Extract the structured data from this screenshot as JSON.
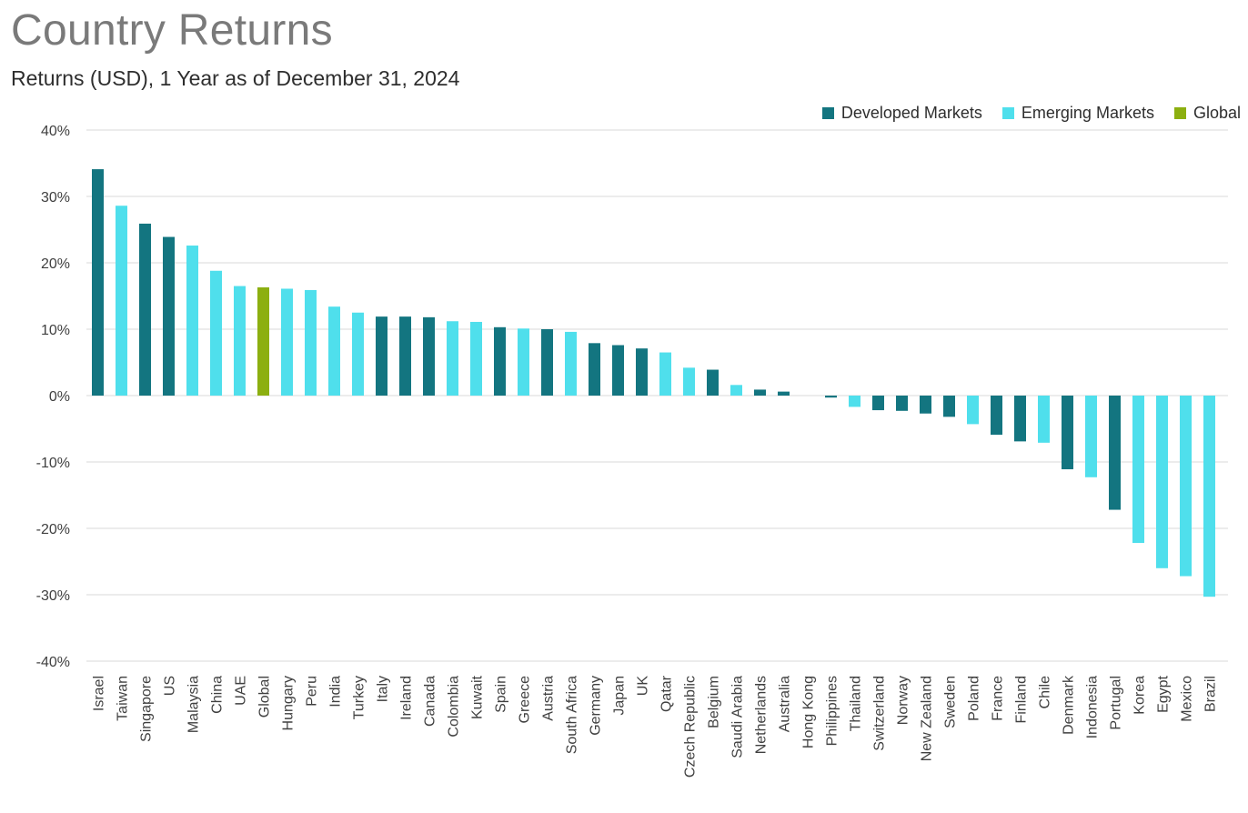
{
  "colors": {
    "developed": "#137580",
    "emerging": "#4fdfec",
    "global": "#8caf10",
    "grid": "#d9d9d9",
    "axis_text": "#404040"
  },
  "chart_data": {
    "type": "bar",
    "title": "Country Returns",
    "subtitle": "Returns (USD), 1 Year as of December 31, 2024",
    "ylim": [
      -40,
      40
    ],
    "yticks": [
      40,
      30,
      20,
      10,
      0,
      -10,
      -20,
      -30,
      -40
    ],
    "ytick_labels": [
      "40%",
      "30%",
      "20%",
      "10%",
      "0%",
      "-10%",
      "-20%",
      "-30%",
      "-40%"
    ],
    "grid": true,
    "legend_position": "top-right",
    "legend": [
      {
        "group": "developed",
        "label": "Developed Markets"
      },
      {
        "group": "emerging",
        "label": "Emerging Markets"
      },
      {
        "group": "global",
        "label": "Global"
      }
    ],
    "categories": [
      "Israel",
      "Taiwan",
      "Singapore",
      "US",
      "Malaysia",
      "China",
      "UAE",
      "Global",
      "Hungary",
      "Peru",
      "India",
      "Turkey",
      "Italy",
      "Ireland",
      "Canada",
      "Colombia",
      "Kuwait",
      "Spain",
      "Greece",
      "Austria",
      "South Africa",
      "Germany",
      "Japan",
      "UK",
      "Qatar",
      "Czech Republic",
      "Belgium",
      "Saudi Arabia",
      "Netherlands",
      "Australia",
      "Hong Kong",
      "Philippines",
      "Thailand",
      "Switzerland",
      "Norway",
      "New Zealand",
      "Sweden",
      "Poland",
      "France",
      "Finland",
      "Chile",
      "Denmark",
      "Indonesia",
      "Portugal",
      "Korea",
      "Egypt",
      "Mexico",
      "Brazil"
    ],
    "values": [
      34.1,
      28.6,
      25.9,
      23.9,
      22.6,
      18.8,
      16.5,
      16.3,
      16.1,
      15.9,
      13.4,
      12.5,
      11.9,
      11.9,
      11.8,
      11.2,
      11.1,
      10.3,
      10.1,
      10.0,
      9.6,
      7.9,
      7.6,
      7.1,
      6.5,
      4.2,
      3.9,
      1.6,
      0.9,
      0.6,
      0.0,
      -0.3,
      -1.7,
      -2.2,
      -2.3,
      -2.7,
      -3.2,
      -4.3,
      -5.9,
      -6.9,
      -7.1,
      -11.1,
      -12.3,
      -17.2,
      -22.2,
      -26.0,
      -27.2,
      -30.3
    ],
    "groups": [
      "developed",
      "emerging",
      "developed",
      "developed",
      "emerging",
      "emerging",
      "emerging",
      "global",
      "emerging",
      "emerging",
      "emerging",
      "emerging",
      "developed",
      "developed",
      "developed",
      "emerging",
      "emerging",
      "developed",
      "emerging",
      "developed",
      "emerging",
      "developed",
      "developed",
      "developed",
      "emerging",
      "emerging",
      "developed",
      "emerging",
      "developed",
      "developed",
      "developed",
      "developed",
      "emerging",
      "developed",
      "developed",
      "developed",
      "developed",
      "emerging",
      "developed",
      "developed",
      "emerging",
      "developed",
      "emerging",
      "developed",
      "emerging",
      "emerging",
      "emerging",
      "emerging"
    ]
  }
}
